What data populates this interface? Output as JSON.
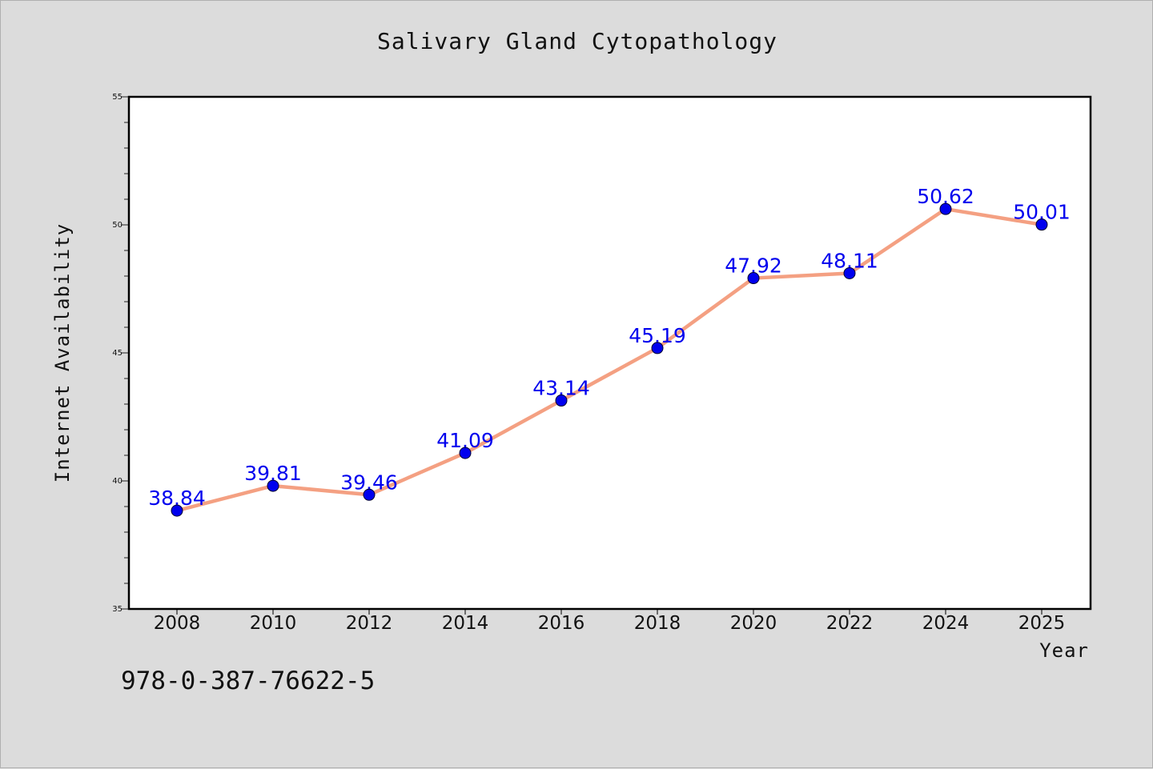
{
  "colors": {
    "background": "#dcdcdc",
    "plot_background": "#ffffff",
    "line": "#f4a082",
    "marker": "#0000ee",
    "label": "#0000ee"
  },
  "footer": {
    "code": "978-0-387-76622-5"
  },
  "chart_data": {
    "type": "line",
    "title": "Salivary Gland Cytopathology",
    "xlabel": "Year",
    "ylabel": "Internet Availability",
    "categories": [
      "2008",
      "2010",
      "2012",
      "2014",
      "2016",
      "2018",
      "2020",
      "2022",
      "2024",
      "2025"
    ],
    "series": [
      {
        "values": [
          38.84,
          39.81,
          39.46,
          41.09,
          43.14,
          45.19,
          47.92,
          48.11,
          50.62,
          50.01
        ]
      }
    ],
    "data_labels": [
      "38.84",
      "39.81",
      "39.46",
      "41.09",
      "43.14",
      "45.19",
      "47.92",
      "48.11",
      "50.62",
      "50.01"
    ],
    "ylim": [
      35,
      55
    ],
    "y_ticks": [
      "35",
      "40",
      "45",
      "50",
      "55"
    ],
    "y_minor_step": 1,
    "grid": false,
    "legend": "none"
  }
}
